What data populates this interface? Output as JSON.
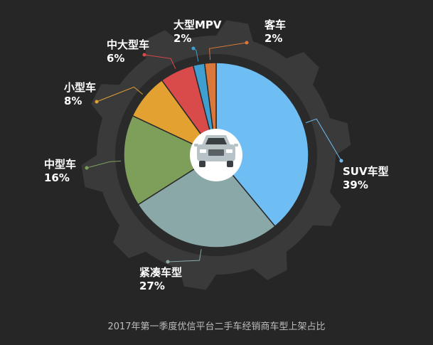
{
  "chart_data": {
    "type": "pie",
    "title": "2017年第一季度优信平台二手车经销商车型上架占比",
    "unit": "%",
    "slices": [
      {
        "name": "SUV车型",
        "value": 39,
        "label": "39%",
        "color": "#6fbef3"
      },
      {
        "name": "紧凑车型",
        "value": 27,
        "label": "27%",
        "color": "#8aa8a8"
      },
      {
        "name": "中型车",
        "value": 16,
        "label": "16%",
        "color": "#7e9f5a"
      },
      {
        "name": "小型车",
        "value": 8,
        "label": "8%",
        "color": "#e3a132"
      },
      {
        "name": "中大型车",
        "value": 6,
        "label": "6%",
        "color": "#d94a4a"
      },
      {
        "name": "大型MPV",
        "value": 2,
        "label": "2%",
        "color": "#3f9fd0"
      },
      {
        "name": "客车",
        "value": 2,
        "label": "2%",
        "color": "#d9783a"
      }
    ]
  },
  "center_icon": "car-front-icon",
  "colors": {
    "background": "#262626",
    "gear": "#3a3a3a",
    "inner_ring": "#2a2a2a",
    "center_circle": "#ffffff",
    "car_body": "#b8c3c7"
  }
}
